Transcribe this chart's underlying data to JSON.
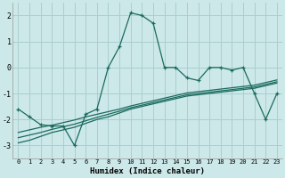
{
  "xlabel": "Humidex (Indice chaleur)",
  "bg_color": "#cce8e8",
  "grid_color": "#aacfcf",
  "line_color": "#1a6b5e",
  "xlim": [
    -0.5,
    23.5
  ],
  "ylim": [
    -3.5,
    2.5
  ],
  "xticks": [
    0,
    1,
    2,
    3,
    4,
    5,
    6,
    7,
    8,
    9,
    10,
    11,
    12,
    13,
    14,
    15,
    16,
    17,
    18,
    19,
    20,
    21,
    22,
    23
  ],
  "yticks": [
    -3,
    -2,
    -1,
    0,
    1,
    2
  ],
  "main_y": [
    -1.6,
    -1.9,
    -2.2,
    -2.25,
    -2.25,
    -3.0,
    -1.8,
    -1.6,
    0.0,
    0.8,
    2.1,
    2.0,
    1.7,
    0.0,
    0.0,
    -0.4,
    -0.5,
    0.0,
    0.0,
    -0.1,
    0.0,
    -1.0,
    -2.0,
    -1.0
  ],
  "trend1_y": [
    -2.9,
    -2.8,
    -2.65,
    -2.5,
    -2.4,
    -2.3,
    -2.15,
    -2.0,
    -1.9,
    -1.75,
    -1.6,
    -1.5,
    -1.4,
    -1.3,
    -1.2,
    -1.1,
    -1.05,
    -1.0,
    -0.95,
    -0.9,
    -0.85,
    -0.8,
    -0.7,
    -0.6
  ],
  "trend2_y": [
    -2.7,
    -2.6,
    -2.5,
    -2.38,
    -2.28,
    -2.18,
    -2.05,
    -1.92,
    -1.8,
    -1.68,
    -1.55,
    -1.45,
    -1.35,
    -1.25,
    -1.15,
    -1.05,
    -1.0,
    -0.95,
    -0.9,
    -0.85,
    -0.8,
    -0.75,
    -0.65,
    -0.55
  ],
  "trend3_y": [
    -2.5,
    -2.4,
    -2.3,
    -2.22,
    -2.12,
    -2.02,
    -1.9,
    -1.8,
    -1.7,
    -1.6,
    -1.48,
    -1.38,
    -1.28,
    -1.18,
    -1.08,
    -0.98,
    -0.93,
    -0.88,
    -0.83,
    -0.78,
    -0.73,
    -0.68,
    -0.58,
    -0.48
  ],
  "xtick_fontsize": 5.0,
  "ytick_fontsize": 6.0,
  "xlabel_fontsize": 6.5
}
